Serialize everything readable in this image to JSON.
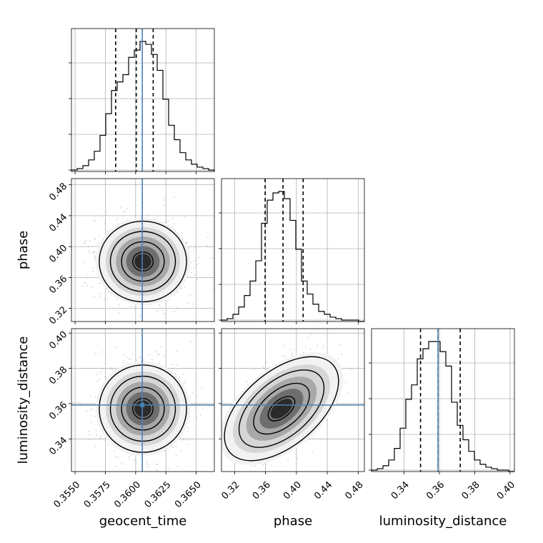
{
  "chart_data": {
    "type": "corner",
    "parameters": [
      {
        "name": "geocent_time",
        "truth": 0.36055,
        "range": [
          0.3547,
          0.3665
        ],
        "quantiles": [
          0.35835,
          0.36005,
          0.36145
        ],
        "ticks": [
          "0.3550",
          "0.3575",
          "0.3600",
          "0.3625",
          "0.3650"
        ],
        "tick_values": [
          0.355,
          0.3575,
          0.36,
          0.3625,
          0.365
        ],
        "hist": [
          1,
          2,
          4,
          8,
          14,
          25,
          40,
          56,
          62,
          67,
          79,
          84,
          90,
          88,
          81,
          70,
          50,
          32,
          22,
          13,
          8,
          5,
          3,
          2,
          1
        ]
      },
      {
        "name": "phase",
        "truth": null,
        "range": [
          0.303,
          0.488
        ],
        "quantiles": [
          0.3595,
          0.3827,
          0.4087
        ],
        "ticks": [
          "0.32",
          "0.36",
          "0.40",
          "0.44",
          "0.48"
        ],
        "tick_values": [
          0.32,
          0.36,
          0.4,
          0.44,
          0.48
        ],
        "hist": [
          1,
          2,
          5,
          10,
          18,
          28,
          42,
          68,
          84,
          89,
          90,
          85,
          70,
          50,
          28,
          19,
          12,
          7,
          5,
          3,
          2,
          1,
          1,
          1,
          0
        ]
      },
      {
        "name": "luminosity_distance",
        "truth": 0.35922,
        "range": [
          0.3215,
          0.4025
        ],
        "quantiles": [
          0.34927,
          0.35922,
          0.37177
        ],
        "ticks": [
          "0.34",
          "0.36",
          "0.38",
          "0.40"
        ],
        "tick_values": [
          0.34,
          0.36,
          0.38,
          0.4
        ],
        "hist": [
          1,
          2,
          4,
          8,
          16,
          30,
          50,
          60,
          78,
          85,
          90,
          90,
          83,
          73,
          48,
          32,
          22,
          14,
          8,
          5,
          3,
          2,
          1,
          1,
          0
        ]
      }
    ],
    "density_axis_ticks": 4,
    "density_ticks": [
      "",
      "",
      "",
      ""
    ],
    "truth_color": "#4682b4",
    "contour_color": "#000000",
    "grid": true
  }
}
